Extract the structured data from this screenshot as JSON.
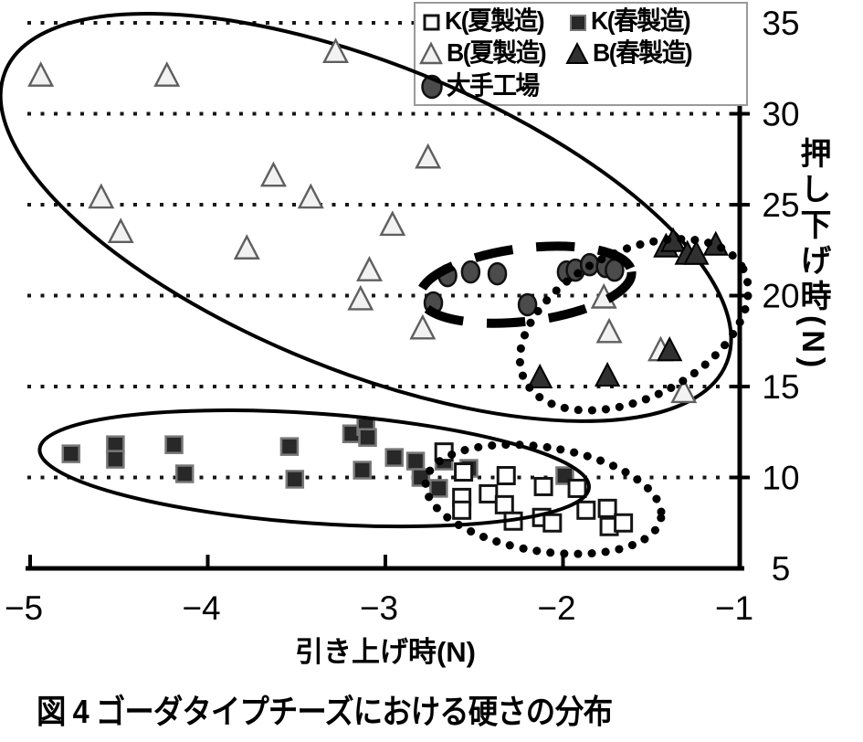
{
  "chart_data": {
    "type": "scatter",
    "title": "図 4 ゴーダタイプチーズにおける硬さの分布",
    "xlabel": "引き上げ時(N)",
    "ylabel": "押し下げ時(N)",
    "xlim": [
      -5,
      -1
    ],
    "ylim": [
      5,
      35
    ],
    "x_ticks": [
      -5,
      -4,
      -3,
      -2,
      -1
    ],
    "x_tick_marks": [
      -5,
      -4,
      -3,
      -2
    ],
    "y_ticks": [
      35,
      30,
      25,
      20,
      15,
      10,
      5
    ],
    "y_tick_marks": [
      30,
      25,
      20,
      15,
      10
    ],
    "gridlines_y": [
      35,
      30,
      25,
      20,
      15,
      10
    ],
    "grid_style": "dotted",
    "legend_position": "top-right",
    "legend": [
      {
        "label": "K(夏製造)",
        "marker": "open-square"
      },
      {
        "label": "K(春製造)",
        "marker": "filled-square"
      },
      {
        "label": "B(夏製造)",
        "marker": "open-triangle"
      },
      {
        "label": "B(春製造)",
        "marker": "filled-triangle"
      },
      {
        "label": "大手工場",
        "marker": "filled-circle"
      }
    ],
    "series": [
      {
        "name": "B(夏製造)",
        "marker": "open-triangle",
        "fill": "#f2f2f2",
        "stroke": "#5f5f5f",
        "points": [
          [
            -4.94,
            32.1
          ],
          [
            -4.23,
            32.1
          ],
          [
            -3.28,
            33.4
          ],
          [
            -4.6,
            25.4
          ],
          [
            -4.49,
            23.5
          ],
          [
            -3.63,
            26.6
          ],
          [
            -3.42,
            25.4
          ],
          [
            -3.78,
            22.6
          ],
          [
            -2.76,
            27.6
          ],
          [
            -2.96,
            23.9
          ],
          [
            -3.09,
            21.4
          ],
          [
            -3.14,
            19.8
          ],
          [
            -2.79,
            18.2
          ],
          [
            -1.77,
            19.9
          ],
          [
            -1.74,
            18.0
          ],
          [
            -1.45,
            17.0
          ],
          [
            -1.32,
            14.7
          ]
        ]
      },
      {
        "name": "K(春製造)",
        "marker": "filled-square",
        "fill": "#282828",
        "stroke": "#787878",
        "points": [
          [
            -4.77,
            11.3
          ],
          [
            -4.52,
            11.8
          ],
          [
            -4.52,
            11.0
          ],
          [
            -4.19,
            11.8
          ],
          [
            -4.13,
            10.2
          ],
          [
            -3.54,
            11.7
          ],
          [
            -3.51,
            9.9
          ],
          [
            -3.19,
            12.4
          ],
          [
            -3.11,
            12.8
          ],
          [
            -3.1,
            12.2
          ],
          [
            -3.13,
            10.4
          ],
          [
            -2.95,
            11.1
          ],
          [
            -2.83,
            10.9
          ],
          [
            -2.8,
            10.0
          ],
          [
            -2.67,
            10.9
          ],
          [
            -2.7,
            9.4
          ],
          [
            -2.53,
            10.5
          ],
          [
            -1.99,
            10.1
          ]
        ]
      },
      {
        "name": "K(夏製造)",
        "marker": "open-square",
        "fill": "#ffffff",
        "stroke": "#141414",
        "points": [
          [
            -2.67,
            11.4
          ],
          [
            -2.56,
            10.3
          ],
          [
            -2.57,
            8.9
          ],
          [
            -2.57,
            8.2
          ],
          [
            -2.42,
            9.1
          ],
          [
            -2.32,
            10.1
          ],
          [
            -2.33,
            8.5
          ],
          [
            -2.28,
            7.6
          ],
          [
            -2.11,
            9.5
          ],
          [
            -2.12,
            7.8
          ],
          [
            -2.06,
            7.5
          ],
          [
            -1.92,
            9.4
          ],
          [
            -1.87,
            8.2
          ],
          [
            -1.75,
            8.3
          ],
          [
            -1.74,
            7.3
          ],
          [
            -1.66,
            7.5
          ]
        ]
      },
      {
        "name": "大手工場",
        "marker": "filled-circle",
        "fill": "#4b4b4b",
        "stroke": "#101010",
        "points": [
          [
            -2.65,
            21.1
          ],
          [
            -2.52,
            21.3
          ],
          [
            -2.37,
            21.2
          ],
          [
            -2.73,
            19.6
          ],
          [
            -2.2,
            19.5
          ],
          [
            -1.98,
            21.3
          ],
          [
            -1.93,
            21.4
          ],
          [
            -1.85,
            21.7
          ],
          [
            -1.76,
            21.6
          ],
          [
            -1.71,
            21.4
          ]
        ]
      },
      {
        "name": "B(春製造)",
        "marker": "filled-triangle",
        "fill": "#303030",
        "stroke": "#000000",
        "points": [
          [
            -1.42,
            22.7
          ],
          [
            -1.38,
            23.0
          ],
          [
            -1.3,
            22.3
          ],
          [
            -1.25,
            22.3
          ],
          [
            -1.14,
            22.8
          ],
          [
            -1.4,
            17.0
          ],
          [
            -2.13,
            15.5
          ],
          [
            -1.75,
            15.6
          ]
        ]
      }
    ],
    "cluster_ellipses": [
      {
        "around": "B(夏製造)",
        "style": "solid",
        "z": "under",
        "cx": -3.11,
        "cy": 24.3,
        "rx": 2.19,
        "ry": 8.44,
        "rot": 22
      },
      {
        "around": "K(春製造)",
        "style": "solid",
        "z": "over",
        "cx": -3.4,
        "cy": 10.5,
        "rx": 1.55,
        "ry": 3.02,
        "rot": 4
      },
      {
        "around": "大手工場",
        "style": "dashed",
        "z": "over",
        "cx": -2.21,
        "cy": 20.6,
        "rx": 0.6,
        "ry": 2.01,
        "rot": -7
      },
      {
        "around": "B(春製造)",
        "style": "dotted",
        "z": "over",
        "cx": -1.6,
        "cy": 18.4,
        "rx": 0.69,
        "ry": 4.02,
        "rot": -27
      },
      {
        "around": "K(夏製造)",
        "style": "dotted",
        "z": "over",
        "cx": -2.11,
        "cy": 8.8,
        "rx": 0.67,
        "ry": 2.86,
        "rot": 9
      }
    ]
  }
}
